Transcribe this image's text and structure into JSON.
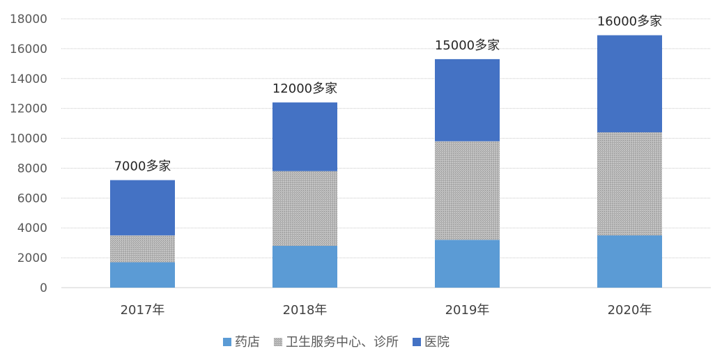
{
  "chart_data": {
    "type": "bar",
    "stacked": true,
    "categories": [
      "2017年",
      "2018年",
      "2019年",
      "2020年"
    ],
    "series": [
      {
        "name": "药店",
        "color": "#5b9bd5",
        "values": [
          1700,
          2800,
          3200,
          3500
        ]
      },
      {
        "name": "卫生服务中心、诊所",
        "color": "#a5a5a5",
        "pattern": "dotted-gray",
        "values": [
          1800,
          5000,
          6600,
          6900
        ]
      },
      {
        "name": "医院",
        "color": "#4472c4",
        "values": [
          3700,
          4600,
          5500,
          6500
        ]
      }
    ],
    "data_labels": [
      "7000多家",
      "12000多家",
      "15000多家",
      "16000多家"
    ],
    "ylim": [
      0,
      18000
    ],
    "yticks": [
      0,
      2000,
      4000,
      6000,
      8000,
      10000,
      12000,
      14000,
      16000,
      18000
    ],
    "title": "",
    "xlabel": "",
    "ylabel": "",
    "grid": true,
    "legend_position": "bottom"
  }
}
